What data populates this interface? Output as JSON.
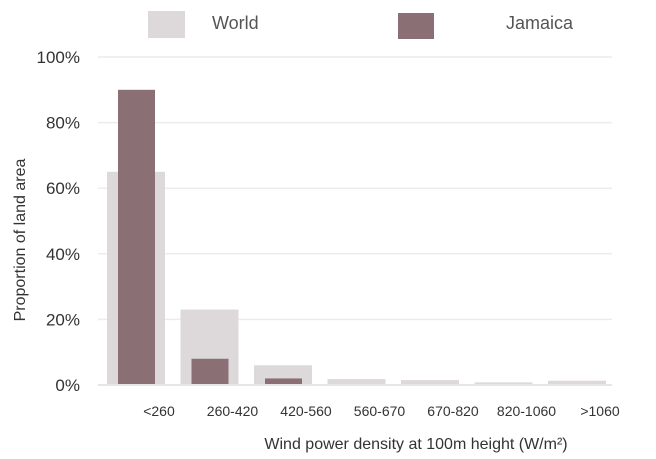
{
  "chart_data": {
    "type": "bar",
    "title": "",
    "xlabel": "Wind power density at 100m height (W/m²)",
    "ylabel": "Proportion of land area",
    "categories": [
      "<260",
      "260-420",
      "420-560",
      "560-670",
      "670-820",
      "820-1060",
      ">1060"
    ],
    "series": [
      {
        "name": "World",
        "color": "#ddd8d9",
        "values": [
          65,
          23,
          6,
          1.8,
          1.5,
          0.8,
          1.3
        ]
      },
      {
        "name": "Jamaica",
        "color": "#8a7075",
        "values": [
          90,
          8,
          2,
          0,
          0,
          0,
          0
        ]
      }
    ],
    "ylim": [
      0,
      100
    ],
    "yticks": [
      0,
      20,
      40,
      60,
      80,
      100
    ],
    "ytick_suffix": "%",
    "grid": true,
    "legend_position": "top"
  }
}
